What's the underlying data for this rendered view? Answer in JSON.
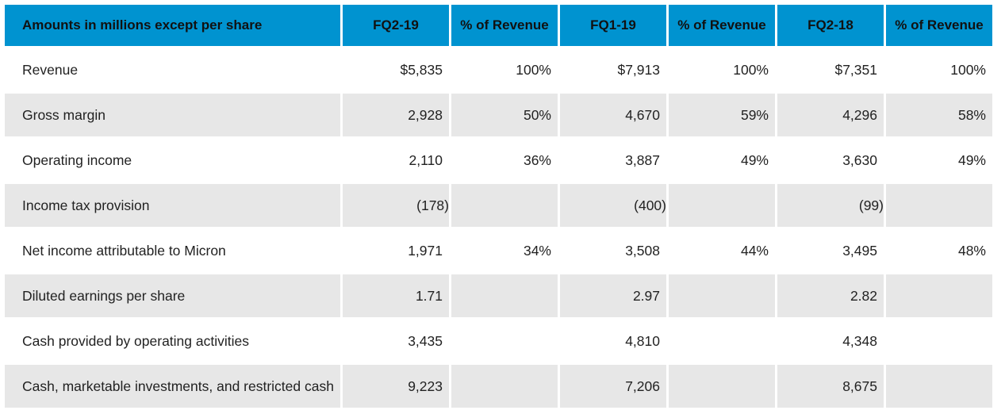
{
  "header": {
    "label": "Amounts in millions except per share",
    "columns": [
      "FQ2-19",
      "% of Revenue",
      "FQ1-19",
      "% of Revenue",
      "FQ2-18",
      "% of Revenue"
    ]
  },
  "rows": [
    {
      "label": "Revenue",
      "values": [
        "$5,835",
        "100%",
        "$7,913",
        "100%",
        "$7,351",
        "100%"
      ]
    },
    {
      "label": "Gross margin",
      "values": [
        "2,928",
        "50%",
        "4,670",
        "59%",
        "4,296",
        "58%"
      ]
    },
    {
      "label": "Operating income",
      "values": [
        "2,110",
        "36%",
        "3,887",
        "49%",
        "3,630",
        "49%"
      ]
    },
    {
      "label": "Income tax provision",
      "values": [
        "(178)",
        "",
        "(400)",
        "",
        "(99)",
        ""
      ]
    },
    {
      "label": "Net income attributable to Micron",
      "values": [
        "1,971",
        "34%",
        "3,508",
        "44%",
        "3,495",
        "48%"
      ]
    },
    {
      "label": "Diluted earnings per share",
      "values": [
        "1.71",
        "",
        "2.97",
        "",
        "2.82",
        ""
      ]
    },
    {
      "label": "Cash provided by operating activities",
      "values": [
        "3,435",
        "",
        "4,810",
        "",
        "4,348",
        ""
      ]
    },
    {
      "label": "Cash, marketable investments, and restricted cash",
      "values": [
        "9,223",
        "",
        "7,206",
        "",
        "8,675",
        ""
      ]
    }
  ],
  "colors": {
    "header_bg": "#0093d0",
    "shaded_row_bg": "#e7e7e7"
  }
}
